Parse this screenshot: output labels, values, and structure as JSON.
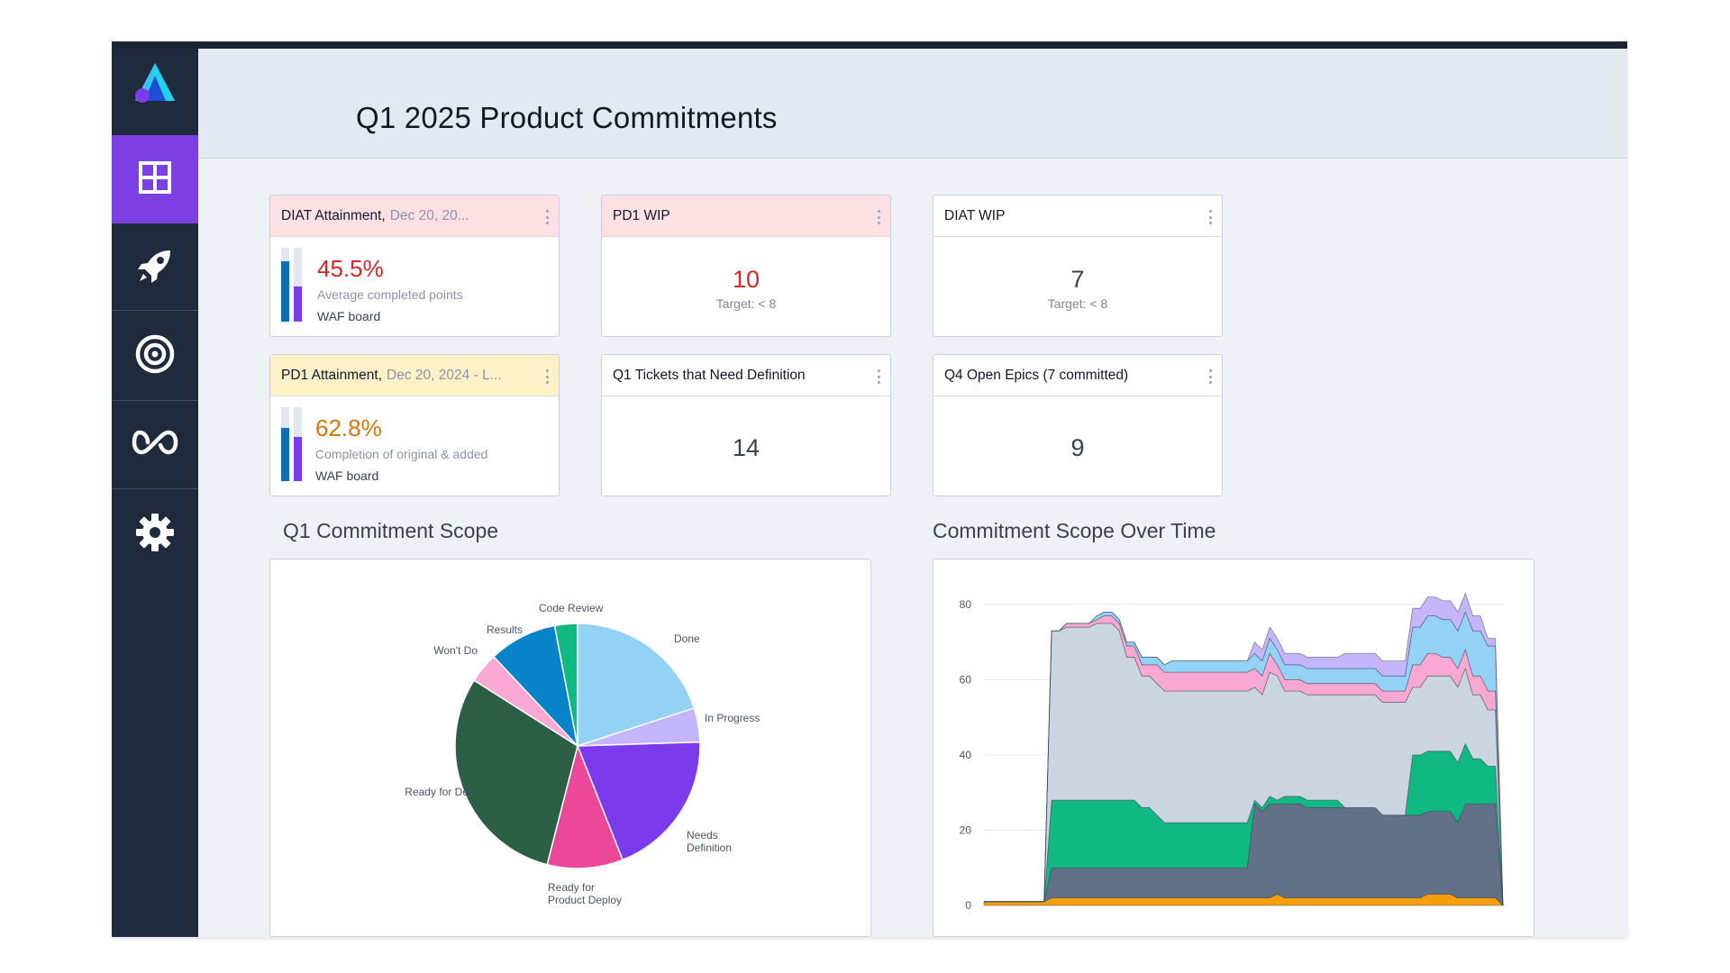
{
  "page": {
    "title": "Q1 2025 Product Commitments"
  },
  "sidebar": {
    "items": [
      {
        "icon": "dashboard-grid-icon",
        "active": true
      },
      {
        "icon": "rocket-icon",
        "active": false
      },
      {
        "icon": "target-icon",
        "active": false
      },
      {
        "icon": "infinity-loop-icon",
        "active": false
      },
      {
        "icon": "gear-icon",
        "active": false
      }
    ]
  },
  "cards": {
    "diat_attainment": {
      "title": "DIAT Attainment,",
      "subtitle": "Dec 20, 20...",
      "value": "45.5%",
      "description": "Average completed points",
      "board": "WAF board",
      "bar_primary_fraction": 0.82,
      "bar_secondary_fraction": 0.48,
      "value_color": "#dc2626"
    },
    "pd1_wip": {
      "title": "PD1 WIP",
      "value": "10",
      "target": "Target: < 8"
    },
    "diat_wip": {
      "title": "DIAT WIP",
      "value": "7",
      "target": "Target: < 8"
    },
    "pd1_attainment": {
      "title": "PD1 Attainment,",
      "subtitle": "Dec 20, 2024 - L...",
      "value": "62.8%",
      "description": "Completion of original & added",
      "board": "WAF board",
      "bar_primary_fraction": 0.72,
      "bar_secondary_fraction": 0.6,
      "value_color": "#d97706"
    },
    "q1_tickets": {
      "title": "Q1 Tickets that Need Definition",
      "value": "14"
    },
    "q4_epics": {
      "title": "Q4 Open Epics (7 committed)",
      "value": "9"
    }
  },
  "pie_section": {
    "title": "Q1 Commitment Scope"
  },
  "area_section": {
    "title": "Commitment Scope Over Time"
  },
  "chart_data": [
    {
      "type": "pie",
      "title": "Q1 Commitment Scope",
      "slices": [
        {
          "label": "Done",
          "value": 20,
          "color": "#93d2f5"
        },
        {
          "label": "In Progress",
          "value": 4.5,
          "color": "#c4b5fd"
        },
        {
          "label": "Needs Definition",
          "value": 19.5,
          "color": "#7c3aed"
        },
        {
          "label": "Ready for Product Deploy",
          "value": 10,
          "color": "#ec4899"
        },
        {
          "label": "Ready for Dev",
          "value": 30,
          "color": "#2d5f46"
        },
        {
          "label": "Won't Do",
          "value": 4,
          "color": "#f9a8d4"
        },
        {
          "label": "Results",
          "value": 9,
          "color": "#0784c9"
        },
        {
          "label": "Code Review",
          "value": 3,
          "color": "#10b981"
        }
      ]
    },
    {
      "type": "area",
      "title": "Commitment Scope Over Time",
      "yticks": [
        0,
        20,
        40,
        60,
        80
      ],
      "ylim": [
        0,
        80
      ],
      "x": [
        0,
        1,
        2,
        3,
        4,
        5,
        6,
        7,
        8,
        9,
        10,
        11,
        12,
        13,
        14,
        15,
        16,
        17,
        18,
        19,
        20,
        21,
        22,
        23,
        24,
        25,
        26,
        27,
        28,
        29,
        30,
        31,
        32,
        33,
        34,
        35,
        36,
        37,
        38,
        39,
        40,
        41,
        42,
        43,
        44,
        45,
        46,
        47,
        48,
        49,
        50,
        51,
        52,
        53,
        54,
        55,
        56,
        57,
        58,
        59,
        60,
        61,
        62,
        63,
        64,
        65,
        66,
        67,
        68,
        69
      ],
      "series": [
        {
          "name": "Orange",
          "color": "#f59e0b",
          "values": [
            1,
            1,
            1,
            1,
            1,
            1,
            1,
            1,
            1,
            2,
            2,
            2,
            2,
            2,
            2,
            2,
            2,
            2,
            2,
            2,
            2,
            2,
            2,
            2,
            2,
            2,
            2,
            2,
            2,
            2,
            2,
            2,
            2,
            2,
            2,
            2,
            2,
            2,
            2,
            3,
            2,
            2,
            2,
            2,
            2,
            2,
            2,
            2,
            2,
            2,
            2,
            2,
            2,
            2,
            2,
            2,
            2,
            2,
            2,
            3,
            3,
            3,
            3,
            2,
            2,
            2,
            2,
            2,
            2,
            0
          ]
        },
        {
          "name": "Slate",
          "color": "#627088",
          "values": [
            0,
            0,
            0,
            0,
            0,
            0,
            0,
            0,
            0,
            8,
            8,
            8,
            8,
            8,
            8,
            8,
            8,
            8,
            8,
            8,
            8,
            8,
            8,
            8,
            8,
            8,
            8,
            8,
            8,
            8,
            8,
            8,
            8,
            8,
            8,
            8,
            25,
            23,
            25,
            24,
            25,
            25,
            25,
            24,
            24,
            24,
            24,
            24,
            24,
            24,
            24,
            24,
            24,
            22,
            22,
            22,
            22,
            22,
            22,
            22,
            22,
            22,
            22,
            20,
            25,
            25,
            25,
            25,
            25,
            0
          ]
        },
        {
          "name": "Green",
          "color": "#10b981",
          "values": [
            0,
            0,
            0,
            0,
            0,
            0,
            0,
            0,
            0,
            18,
            18,
            18,
            18,
            18,
            18,
            18,
            18,
            18,
            18,
            18,
            18,
            16,
            16,
            14,
            12,
            12,
            12,
            12,
            12,
            12,
            12,
            12,
            12,
            12,
            12,
            12,
            1,
            1,
            2,
            1,
            2,
            2,
            2,
            2,
            2,
            2,
            2,
            2,
            0,
            0,
            0,
            0,
            0,
            0,
            0,
            0,
            0,
            16,
            16,
            16,
            16,
            16,
            16,
            16,
            16,
            12,
            12,
            10,
            10,
            0
          ]
        },
        {
          "name": "Gray",
          "color": "#cbd5e1",
          "values": [
            0,
            0,
            0,
            0,
            0,
            0,
            0,
            0,
            0,
            45,
            45,
            46,
            46,
            46,
            46,
            47,
            47,
            47,
            45,
            38,
            38,
            35,
            35,
            35,
            35,
            35,
            35,
            35,
            35,
            35,
            35,
            35,
            35,
            35,
            35,
            35,
            30,
            30,
            33,
            33,
            28,
            28,
            28,
            28,
            28,
            28,
            28,
            28,
            30,
            30,
            30,
            30,
            30,
            30,
            30,
            30,
            30,
            18,
            18,
            20,
            20,
            20,
            20,
            20,
            20,
            17,
            17,
            15,
            15,
            0
          ]
        },
        {
          "name": "Pink",
          "color": "#f9a8d4",
          "values": [
            0,
            0,
            0,
            0,
            0,
            0,
            0,
            0,
            0,
            0,
            0,
            1,
            1,
            1,
            1,
            1,
            2,
            2,
            2,
            3,
            3,
            3,
            3,
            5,
            5,
            5,
            5,
            5,
            5,
            5,
            5,
            5,
            5,
            5,
            5,
            5,
            5,
            5,
            5,
            3,
            3,
            3,
            3,
            3,
            3,
            3,
            3,
            3,
            3,
            3,
            3,
            3,
            3,
            3,
            3,
            3,
            3,
            6,
            6,
            6,
            6,
            5,
            5,
            5,
            5,
            5,
            5,
            5,
            5,
            0
          ]
        },
        {
          "name": "Light Blue",
          "color": "#93d2f5",
          "values": [
            0,
            0,
            0,
            0,
            0,
            0,
            0,
            0,
            0,
            0,
            0,
            0,
            0,
            0,
            0,
            1,
            1,
            1,
            1,
            1,
            1,
            2,
            2,
            2,
            2,
            3,
            3,
            3,
            3,
            3,
            3,
            3,
            3,
            3,
            3,
            3,
            4,
            4,
            4,
            4,
            4,
            4,
            4,
            4,
            4,
            4,
            4,
            4,
            4,
            4,
            4,
            4,
            4,
            4,
            4,
            4,
            4,
            10,
            10,
            10,
            10,
            10,
            10,
            10,
            10,
            12,
            12,
            12,
            12,
            0
          ]
        },
        {
          "name": "Lavender",
          "color": "#c4b5fd",
          "values": [
            0,
            0,
            0,
            0,
            0,
            0,
            0,
            0,
            0,
            0,
            0,
            0,
            0,
            0,
            0,
            0,
            0,
            0,
            0,
            0,
            0,
            0,
            0,
            0,
            0,
            0,
            0,
            0,
            0,
            0,
            0,
            0,
            0,
            0,
            0,
            0,
            3,
            3,
            3,
            3,
            3,
            3,
            3,
            3,
            3,
            3,
            3,
            3,
            4,
            4,
            4,
            4,
            4,
            4,
            4,
            4,
            4,
            5,
            5,
            5,
            5,
            5,
            5,
            5,
            5,
            4,
            4,
            2,
            2,
            0
          ]
        }
      ]
    }
  ]
}
